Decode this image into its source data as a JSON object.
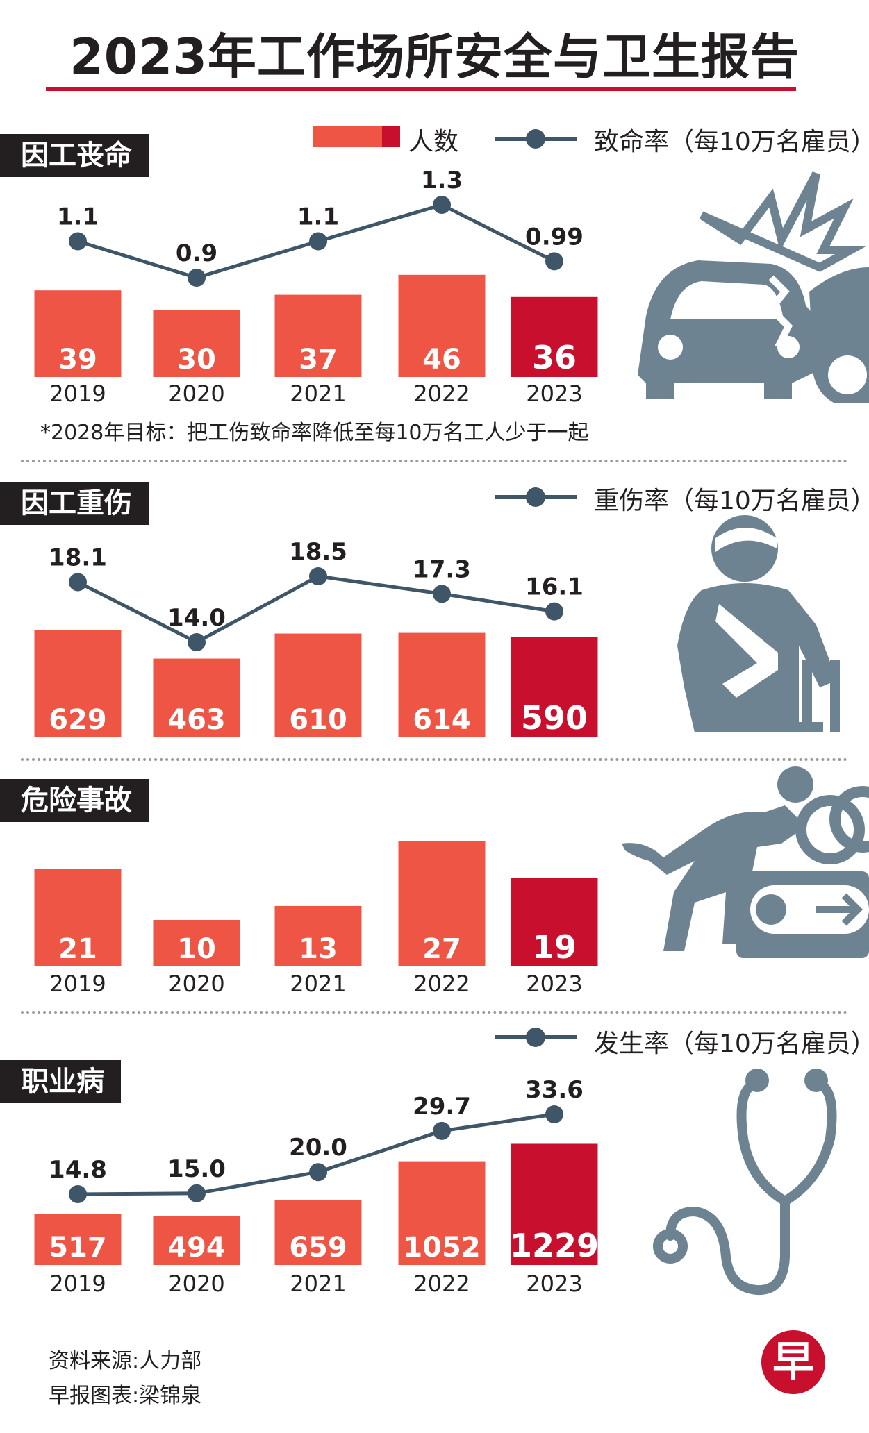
{
  "title": "2023年工作场所安全与卫生报告",
  "legend": {
    "count_label": "人数",
    "fatal_rate_label": "致命率（每10万名雇员）",
    "injury_rate_label": "重伤率（每10万名雇员）",
    "disease_rate_label": "发生率（每10万名雇员）"
  },
  "sections": {
    "fatal": "因工丧命",
    "injury": "因工重伤",
    "dangerous": "危险事故",
    "disease": "职业病"
  },
  "note": "*2028年目标：把工伤致命率降低至每10万名工人少于一起",
  "footer": {
    "source": "资料来源:人力部",
    "credit": "早报图表:梁锦泉",
    "logo": "早"
  },
  "colors": {
    "bar": "#ee5544",
    "bar_highlight": "#c8102e",
    "line": "#3f5668",
    "icon": "#6e8391"
  },
  "icons": [
    "car-crash-icon",
    "injured-person-icon",
    "machine-accident-icon",
    "stethoscope-icon"
  ],
  "chart_data": [
    {
      "type": "bar",
      "title": "因工丧命",
      "categories": [
        "2019",
        "2020",
        "2021",
        "2022",
        "2023"
      ],
      "series": [
        {
          "name": "人数",
          "values": [
            39,
            30,
            37,
            46,
            36
          ]
        },
        {
          "name": "致命率（每10万名雇员）",
          "type": "line",
          "values": [
            1.1,
            0.9,
            1.1,
            1.3,
            0.99
          ],
          "labels": [
            "1.1",
            "0.9",
            "1.1",
            "1.3",
            "0.99"
          ]
        }
      ]
    },
    {
      "type": "bar",
      "title": "因工重伤",
      "categories": [
        "2019",
        "2020",
        "2021",
        "2022",
        "2023"
      ],
      "series": [
        {
          "name": "人数",
          "values": [
            629,
            463,
            610,
            614,
            590
          ]
        },
        {
          "name": "重伤率（每10万名雇员）",
          "type": "line",
          "values": [
            18.1,
            14.0,
            18.5,
            17.3,
            16.1
          ],
          "labels": [
            "18.1",
            "14.0",
            "18.5",
            "17.3",
            "16.1"
          ]
        }
      ]
    },
    {
      "type": "bar",
      "title": "危险事故",
      "categories": [
        "2019",
        "2020",
        "2021",
        "2022",
        "2023"
      ],
      "series": [
        {
          "name": "人数",
          "values": [
            21,
            10,
            13,
            27,
            19
          ]
        }
      ]
    },
    {
      "type": "bar",
      "title": "职业病",
      "categories": [
        "2019",
        "2020",
        "2021",
        "2022",
        "2023"
      ],
      "series": [
        {
          "name": "人数",
          "values": [
            517,
            494,
            659,
            1052,
            1229
          ]
        },
        {
          "name": "发生率（每10万名雇员）",
          "type": "line",
          "values": [
            14.8,
            15.0,
            20.0,
            29.7,
            33.6
          ],
          "labels": [
            "14.8",
            "15.0",
            "20.0",
            "29.7",
            "33.6"
          ]
        }
      ]
    }
  ]
}
